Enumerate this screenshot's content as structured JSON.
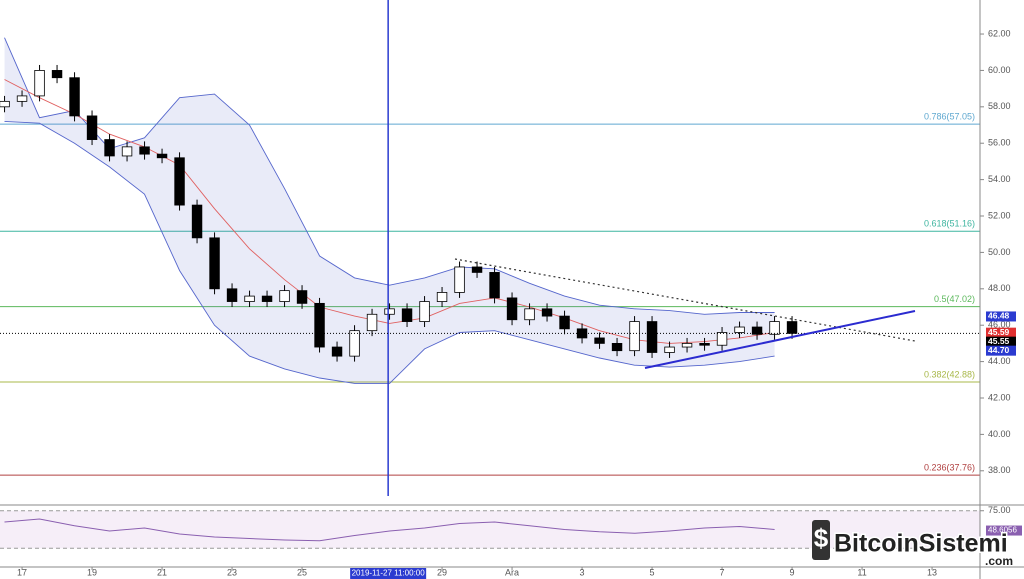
{
  "chart_data": [
    {
      "type": "candlestick",
      "x": [
        -0.5,
        0,
        0.5,
        1,
        1.5,
        2,
        2.5,
        3,
        3.5,
        4,
        4.5,
        5,
        5.5,
        6,
        6.5,
        7,
        7.5,
        8,
        8.5,
        9,
        9.5,
        10,
        10.5,
        11,
        11.5,
        12,
        12.5,
        13,
        13.5,
        14,
        14.5,
        15,
        15.5,
        16,
        16.5,
        17,
        17.5,
        18,
        18.5,
        19,
        19.5,
        20,
        20.5,
        21,
        21.5,
        22
      ],
      "open": [
        58.0,
        58.3,
        58.6,
        60.0,
        59.6,
        57.5,
        56.2,
        55.3,
        55.8,
        55.4,
        55.2,
        52.6,
        50.8,
        48.0,
        47.3,
        47.6,
        47.3,
        47.9,
        47.2,
        44.8,
        44.3,
        45.7,
        46.6,
        46.9,
        46.2,
        47.3,
        47.8,
        49.2,
        48.9,
        47.5,
        46.3,
        46.9,
        46.5,
        45.8,
        45.3,
        45.0,
        44.6,
        46.2,
        44.5,
        44.8,
        45.0,
        44.9,
        45.6,
        45.9,
        45.5,
        46.2
      ],
      "high": [
        58.6,
        58.9,
        60.3,
        60.3,
        59.9,
        57.8,
        56.5,
        56.1,
        56.1,
        55.7,
        55.5,
        52.9,
        51.1,
        48.3,
        47.9,
        47.9,
        48.2,
        48.2,
        47.5,
        45.1,
        46.0,
        46.9,
        47.2,
        47.2,
        47.6,
        48.1,
        49.5,
        49.5,
        49.2,
        47.8,
        47.2,
        47.2,
        46.8,
        46.1,
        45.6,
        45.3,
        46.5,
        46.5,
        45.1,
        45.3,
        45.3,
        45.9,
        46.2,
        46.2,
        46.5,
        46.5
      ],
      "low": [
        57.7,
        58.0,
        58.3,
        59.3,
        57.2,
        55.9,
        55.0,
        55.0,
        55.1,
        54.9,
        52.3,
        50.5,
        47.7,
        47.0,
        47.0,
        47.0,
        47.0,
        46.9,
        44.5,
        44.0,
        44.0,
        45.4,
        46.3,
        45.9,
        45.9,
        47.0,
        47.5,
        48.6,
        47.2,
        46.0,
        46.0,
        46.2,
        45.5,
        45.0,
        44.7,
        44.3,
        44.3,
        44.2,
        44.2,
        44.5,
        44.6,
        44.6,
        45.3,
        45.2,
        45.2,
        45.25
      ],
      "close": [
        58.3,
        58.6,
        60.0,
        59.6,
        57.5,
        56.2,
        55.3,
        55.8,
        55.4,
        55.2,
        52.6,
        50.8,
        48.0,
        47.3,
        47.6,
        47.3,
        47.9,
        47.2,
        44.8,
        44.3,
        45.7,
        46.6,
        46.9,
        46.2,
        47.3,
        47.8,
        49.2,
        48.9,
        47.5,
        46.3,
        46.9,
        46.5,
        45.8,
        45.3,
        45.0,
        44.6,
        46.2,
        44.5,
        44.8,
        45.0,
        44.9,
        45.6,
        45.9,
        45.5,
        46.2,
        45.55
      ],
      "up_color": "#ffffff",
      "down_color": "#000000",
      "xlim": [
        -0.63,
        27.37
      ],
      "xticks": [
        {
          "value": 0,
          "label": "17"
        },
        {
          "value": 2,
          "label": "19"
        },
        {
          "value": 4,
          "label": "21"
        },
        {
          "value": 6,
          "label": "23"
        },
        {
          "value": 8,
          "label": "25"
        },
        {
          "value": 12,
          "label": "29"
        },
        {
          "value": 14,
          "label": "Ara"
        },
        {
          "value": 16,
          "label": "3"
        },
        {
          "value": 18,
          "label": "5"
        },
        {
          "value": 20,
          "label": "7"
        },
        {
          "value": 22,
          "label": "9"
        },
        {
          "value": 24,
          "label": "11"
        },
        {
          "value": 26,
          "label": "13"
        }
      ],
      "ylim": [
        36.12,
        63.87
      ],
      "yticks": [
        {
          "value": 38,
          "label": "38.00"
        },
        {
          "value": 40,
          "label": "40.00"
        },
        {
          "value": 42,
          "label": "42.00"
        },
        {
          "value": 44,
          "label": "44.00"
        },
        {
          "value": 46,
          "label": "46.00"
        },
        {
          "value": 48,
          "label": "48.00"
        },
        {
          "value": 50,
          "label": "50.00"
        },
        {
          "value": 52,
          "label": "52.00"
        },
        {
          "value": 54,
          "label": "54.00"
        },
        {
          "value": 56,
          "label": "56.00"
        },
        {
          "value": 58,
          "label": "58.00"
        },
        {
          "value": 60,
          "label": "60.00"
        },
        {
          "value": 62,
          "label": "62.00"
        }
      ],
      "bollinger": {
        "x": [
          -0.5,
          0.5,
          1.5,
          2.5,
          3.5,
          4.5,
          5.5,
          6.5,
          7.5,
          8.5,
          9.5,
          10.5,
          11.5,
          12.5,
          13.5,
          14.5,
          15.5,
          16.5,
          17.5,
          18.5,
          19.5,
          20.5,
          21.5
        ],
        "upper": [
          61.8,
          57.4,
          57.8,
          55.7,
          56.3,
          58.5,
          58.7,
          57.0,
          53.5,
          49.8,
          48.6,
          48.2,
          48.6,
          49.2,
          49.1,
          48.3,
          47.6,
          47.1,
          46.9,
          46.8,
          46.6,
          46.7,
          46.7
        ],
        "middle": [
          59.5,
          58.5,
          57.6,
          56.5,
          55.8,
          54.8,
          52.4,
          50.2,
          48.5,
          47.0,
          46.5,
          46.1,
          46.4,
          47.2,
          47.5,
          47.0,
          46.4,
          45.7,
          45.2,
          45.0,
          45.1,
          45.3,
          45.6
        ],
        "lower": [
          57.2,
          57.1,
          56.0,
          54.7,
          53.2,
          49.0,
          46.0,
          44.3,
          43.6,
          43.1,
          42.8,
          42.8,
          44.7,
          45.6,
          45.7,
          45.2,
          44.7,
          44.2,
          43.8,
          43.7,
          43.8,
          44.0,
          44.3
        ],
        "band_color": "#5566cc",
        "middle_color": "#e06060"
      },
      "fib": [
        {
          "price": 57.05,
          "label": "0.786(57.05)",
          "color": "#5fa8d0"
        },
        {
          "price": 51.16,
          "label": "0.618(51.16)",
          "color": "#3fb5a0"
        },
        {
          "price": 47.02,
          "label": "0.5(47.02)",
          "color": "#5cb85c"
        },
        {
          "price": 42.88,
          "label": "0.382(42.88)",
          "color": "#a8b84a"
        },
        {
          "price": 37.76,
          "label": "0.236(37.76)",
          "color": "#b04040"
        }
      ],
      "price_labels": [
        {
          "value": 46.48,
          "color": "#2b3bd0"
        },
        {
          "value": 45.59,
          "color": "#e03030"
        },
        {
          "value": 45.55,
          "color": "#000000"
        },
        {
          "value": 44.7,
          "label": "44.70",
          "color": "#2b3bd0"
        }
      ],
      "crosshair": {
        "x": 10.46,
        "label": "2019-11-27 11:00:00",
        "color": "#2b3bd0"
      }
    },
    {
      "type": "line",
      "x": [
        -0.5,
        0.5,
        1.5,
        2.5,
        3.5,
        4.5,
        5.5,
        6.5,
        7.5,
        8.5,
        9.5,
        10.5,
        11.5,
        12.5,
        13.5,
        14.5,
        15.5,
        16.5,
        17.5,
        18.5,
        19.5,
        20.5,
        21.5
      ],
      "values": [
        60,
        64,
        55,
        48,
        52,
        44,
        40,
        38,
        36,
        35,
        42,
        48,
        52,
        58,
        60,
        55,
        50,
        47,
        45,
        48,
        52,
        54,
        50
      ],
      "color": "#8a5fb0",
      "xlim": [
        -0.63,
        27.37
      ],
      "ylim": [
        0,
        80
      ],
      "yticks": [
        {
          "value": 75,
          "label": "75.00"
        }
      ],
      "levels": [
        25,
        75
      ],
      "last_value": 48.6056
    }
  ],
  "watermark": {
    "name": "BitcoinSistemi",
    "suffix": ".com"
  }
}
